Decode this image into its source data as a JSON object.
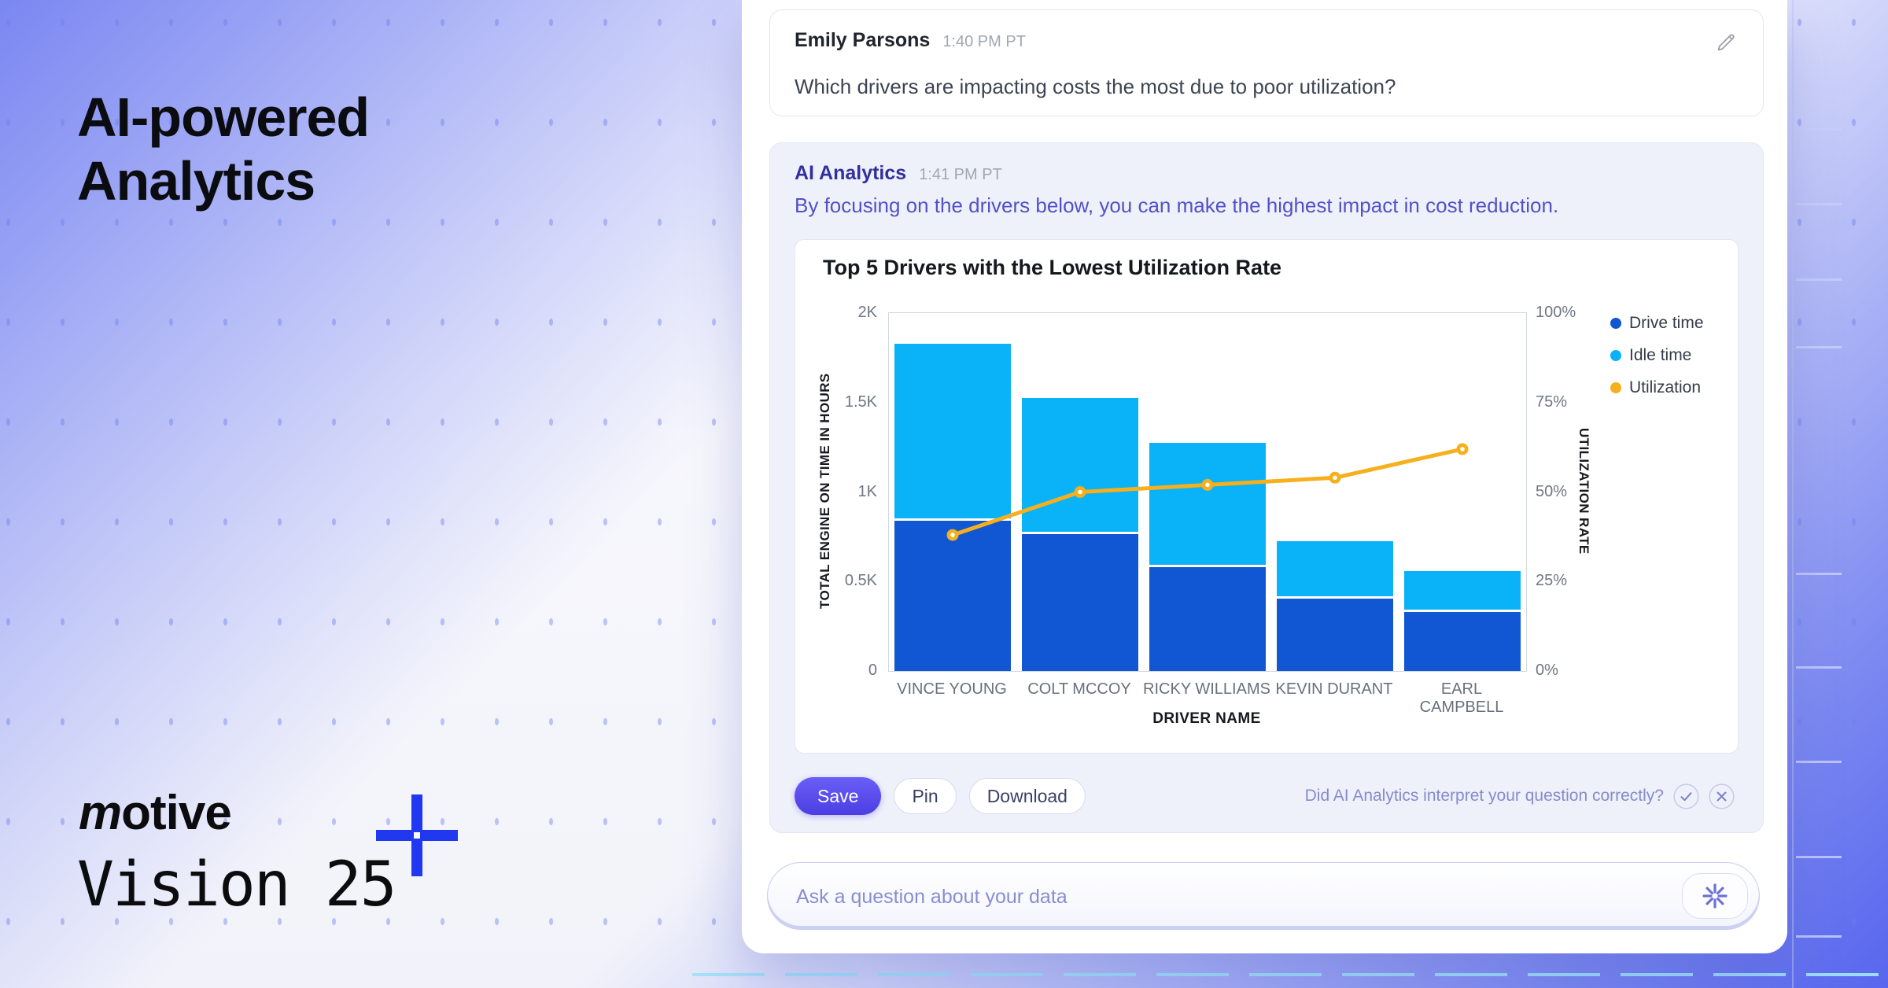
{
  "hero": {
    "title_line1": "AI-powered",
    "title_line2": "Analytics",
    "brand": "motive",
    "event": "Vision 25"
  },
  "chat": {
    "user_message": {
      "author": "Emily Parsons",
      "time": "1:40 PM PT",
      "text": "Which drivers are impacting costs the most due to poor utilization?"
    },
    "ai_message": {
      "author": "AI Analytics",
      "time": "1:41 PM PT",
      "text": "By focusing on the drivers below, you can make the highest impact in cost reduction."
    },
    "actions": {
      "save": "Save",
      "pin": "Pin",
      "download": "Download",
      "feedback_prompt": "Did AI Analytics interpret your question correctly?"
    },
    "input": {
      "placeholder": "Ask a question about your data"
    }
  },
  "icons": {
    "edit": "pencil-icon",
    "confirm": "check-circle-icon",
    "reject": "x-circle-icon",
    "ask": "asterisk-sparkle-icon",
    "brand_mark": "plus-crosshair-icon"
  },
  "colors": {
    "drive_time": "#1156d2",
    "idle_time": "#0ab2f7",
    "utilization": "#f6b01e",
    "accent_indigo": "#4c3ee2",
    "ai_text": "#5250c9",
    "background_blue": "#7b87f2"
  },
  "chart_data": {
    "type": "bar",
    "stacked": true,
    "title": "Top 5 Drivers with the Lowest Utilization Rate",
    "categories": [
      "VINCE YOUNG",
      "COLT MCCOY",
      "RICKY WILLIAMS",
      "KEVIN DURANT",
      "EARL CAMPBELL"
    ],
    "series": [
      {
        "name": "Drive time",
        "type": "bar",
        "axis": "left",
        "color": "#1156d2",
        "values": [
          840,
          765,
          580,
          405,
          330
        ]
      },
      {
        "name": "Idle time",
        "type": "bar",
        "axis": "left",
        "color": "#0ab2f7",
        "values": [
          990,
          760,
          695,
          320,
          230
        ]
      },
      {
        "name": "Utilization",
        "type": "line",
        "axis": "right",
        "color": "#f6b01e",
        "values": [
          38,
          50,
          52,
          54,
          62
        ]
      }
    ],
    "xlabel": "DRIVER NAME",
    "ylabel_left": "TOTAL ENGINE ON TIME IN HOURS",
    "ylabel_right": "UTILIZATION RATE",
    "ylim_left": [
      0,
      2000
    ],
    "ylim_right": [
      0,
      100
    ],
    "yticks_left": [
      "0",
      "0.5K",
      "1K",
      "1.5K",
      "2K"
    ],
    "yticks_right": [
      "0%",
      "25%",
      "50%",
      "75%",
      "100%"
    ],
    "legend_position": "right",
    "grid": false
  }
}
